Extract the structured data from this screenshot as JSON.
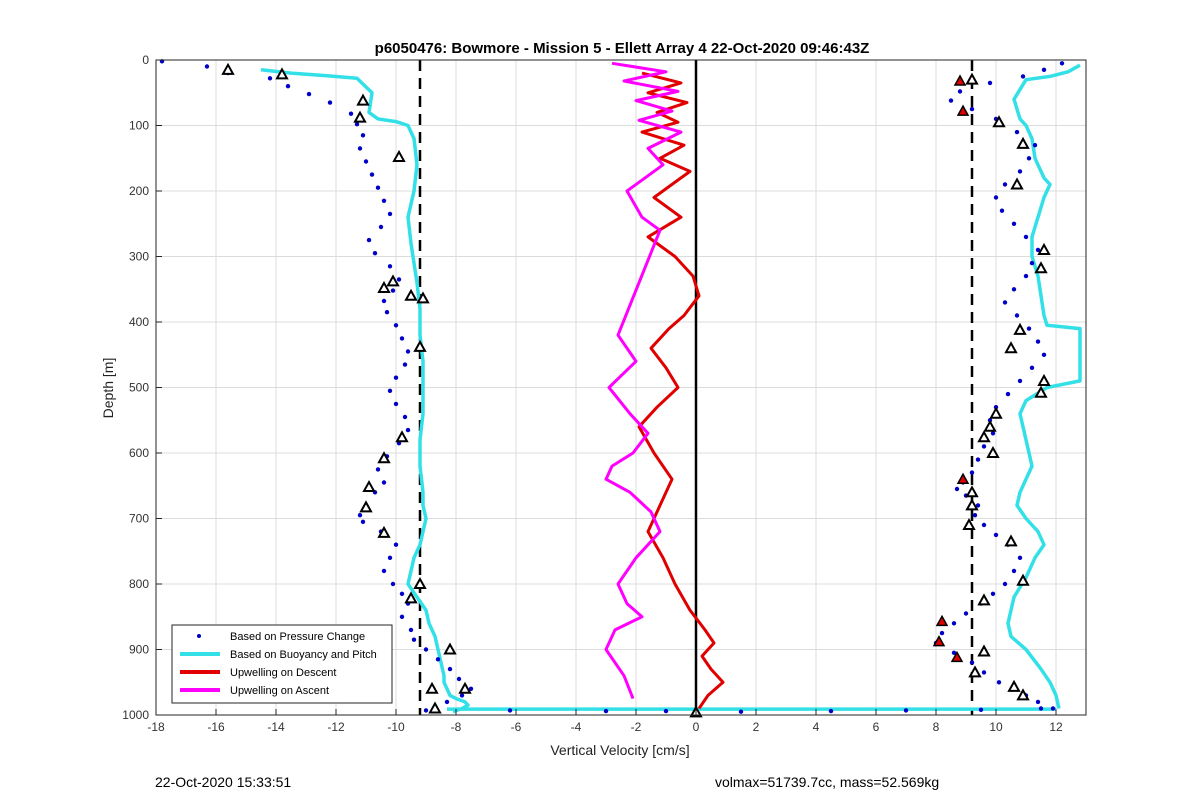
{
  "chart_data": {
    "type": "scatter",
    "title": "p6050476: Bowmore - Mission 5 - Ellett Array 4 22-Oct-2020 09:46:43Z",
    "xlabel": "Vertical Velocity [cm/s]",
    "ylabel": "Depth [m]",
    "xlim": [
      -18,
      13
    ],
    "ylim": [
      0,
      1000
    ],
    "y_reversed": true,
    "grid": true,
    "x_ticks": [
      "-18",
      "-16",
      "-14",
      "-12",
      "-10",
      "-8",
      "-6",
      "-4",
      "-2",
      "0",
      "2",
      "4",
      "6",
      "8",
      "10",
      "12"
    ],
    "y_ticks": [
      "0",
      "100",
      "200",
      "300",
      "400",
      "500",
      "600",
      "700",
      "800",
      "900",
      "1000"
    ],
    "legend_position": "bottom-left",
    "reference_lines": {
      "dashed_x": [
        -9.2,
        9.2
      ],
      "solid_x": [
        0
      ]
    },
    "series": [
      {
        "name": "Based on Pressure Change",
        "style": "dots",
        "color": "#0000c8",
        "profiles": [
          {
            "x": [
              -17.8,
              -16.3,
              -15.6,
              -14.2,
              -13.6,
              -12.9,
              -12.2,
              -11.5,
              -11.3,
              -11.1,
              -11.2,
              -11.0,
              -10.8,
              -10.6,
              -10.4,
              -10.2,
              -10.5,
              -10.9,
              -10.7,
              -10.2,
              -9.9,
              -10.1,
              -10.4,
              -10.3,
              -10.0,
              -9.8,
              -9.6,
              -9.7,
              -10.0,
              -10.2,
              -10.0,
              -9.7,
              -9.6,
              -9.9,
              -10.3,
              -10.6,
              -10.4,
              -10.7,
              -11.0,
              -11.2,
              -11.1,
              -10.5,
              -10.0,
              -10.2,
              -10.4,
              -10.1,
              -9.8,
              -9.6,
              -9.8,
              -9.5,
              -9.4,
              -9.0,
              -8.6,
              -8.2,
              -7.9,
              -7.5,
              -7.8,
              -8.3,
              -8.7
            ],
            "y": [
              2,
              10,
              20,
              28,
              40,
              52,
              65,
              82,
              98,
              115,
              135,
              155,
              175,
              195,
              215,
              235,
              255,
              275,
              295,
              315,
              335,
              352,
              368,
              385,
              405,
              425,
              445,
              465,
              485,
              505,
              525,
              545,
              565,
              585,
              605,
              625,
              645,
              660,
              680,
              695,
              705,
              720,
              740,
              760,
              780,
              800,
              815,
              830,
              850,
              870,
              885,
              900,
              915,
              930,
              945,
              960,
              970,
              980,
              990
            ]
          },
          {
            "x": [
              12.2,
              11.6,
              10.9,
              9.8,
              8.8,
              8.5,
              9.2,
              10.0,
              10.7,
              11.3,
              11.1,
              10.8,
              10.3,
              10.0,
              10.2,
              10.6,
              11.0,
              11.4,
              11.2,
              11.0,
              10.6,
              10.3,
              10.7,
              11.1,
              11.4,
              11.6,
              11.2,
              10.8,
              10.4,
              10.0,
              9.8,
              9.9,
              9.6,
              9.4,
              9.2,
              8.9,
              8.7,
              9.0,
              9.4,
              9.3,
              9.6,
              10.0,
              10.4,
              10.8,
              10.6,
              10.3,
              9.9,
              9.5,
              9.0,
              8.6,
              8.2,
              8.0,
              8.6,
              9.2,
              9.6,
              10.1,
              10.6,
              11.0,
              11.4,
              11.9
            ],
            "y": [
              5,
              15,
              25,
              35,
              48,
              62,
              75,
              90,
              110,
              130,
              150,
              170,
              190,
              210,
              230,
              250,
              270,
              290,
              310,
              330,
              350,
              370,
              390,
              410,
              430,
              450,
              470,
              490,
              510,
              530,
              550,
              570,
              590,
              610,
              630,
              645,
              655,
              665,
              680,
              695,
              710,
              725,
              740,
              760,
              780,
              800,
              815,
              830,
              845,
              860,
              875,
              890,
              905,
              920,
              935,
              950,
              960,
              970,
              980,
              990
            ]
          },
          {
            "x": [
              -9.0,
              -6.2,
              -3.0,
              -1.0,
              1.5,
              4.5,
              7.0,
              9.5,
              11.5
            ],
            "y": [
              993,
              993,
              994,
              994,
              995,
              994,
              993,
              992,
              990
            ]
          }
        ]
      },
      {
        "name": "Based on Buoyancy and Pitch",
        "style": "line",
        "color": "#33e0e8",
        "profiles": [
          {
            "x": [
              -14.5,
              -13.5,
              -12.3,
              -11.3,
              -10.8,
              -10.9,
              -10.6,
              -10.0,
              -9.6,
              -9.4,
              -9.3,
              -9.4,
              -9.6,
              -9.5,
              -9.4,
              -9.3,
              -9.2,
              -9.2,
              -9.1,
              -9.1,
              -9.1,
              -9.2,
              -9.2,
              -9.1,
              -9.1,
              -9.0,
              -9.1,
              -9.2,
              -9.4,
              -9.5,
              -9.6,
              -9.3,
              -9.0,
              -8.9,
              -8.7,
              -8.6,
              -8.5,
              -8.4,
              -8.4,
              -8.3,
              -8.2,
              -8.0,
              -7.7,
              -7.6,
              -7.8,
              -8.1
            ],
            "y": [
              15,
              20,
              24,
              28,
              50,
              80,
              90,
              94,
              100,
              120,
              160,
              200,
              240,
              280,
              310,
              340,
              380,
              420,
              460,
              500,
              540,
              580,
              620,
              660,
              680,
              700,
              720,
              740,
              760,
              780,
              800,
              820,
              840,
              860,
              880,
              900,
              920,
              940,
              950,
              960,
              970,
              975,
              980,
              985,
              990,
              995
            ]
          },
          {
            "x": [
              12.8,
              12.4,
              11.8,
              11.0,
              10.6,
              10.8,
              11.0,
              11.2,
              11.3,
              11.6,
              11.8,
              11.6,
              11.4,
              11.2,
              11.2,
              11.4,
              11.5,
              11.6,
              11.7,
              12.8,
              12.8,
              11.7,
              11.0,
              10.8,
              10.9,
              11.0,
              11.1,
              11.2,
              11.0,
              10.8,
              10.7,
              11.0,
              11.4,
              11.6,
              11.3,
              11.0,
              10.6,
              10.4,
              10.5,
              11.0,
              11.5,
              11.8,
              12.0,
              12.1
            ],
            "y": [
              8,
              18,
              25,
              30,
              60,
              90,
              100,
              120,
              150,
              180,
              190,
              210,
              240,
              270,
              300,
              330,
              360,
              390,
              405,
              410,
              490,
              500,
              520,
              540,
              560,
              580,
              600,
              620,
              640,
              660,
              680,
              700,
              720,
              740,
              760,
              790,
              820,
              860,
              880,
              900,
              930,
              950,
              970,
              990
            ]
          },
          {
            "x": [
              -8.3,
              -6.0,
              -4.0,
              -2.0,
              0.0,
              2.0,
              4.0,
              6.0,
              8.0,
              10.0,
              12.0
            ],
            "y": [
              991,
              991,
              991,
              991,
              991,
              991,
              991,
              991,
              991,
              991,
              991
            ]
          }
        ]
      },
      {
        "name": "Upwelling on Descent",
        "style": "line",
        "color": "#e00000",
        "profiles": [
          {
            "x": [
              -1.8,
              -0.5,
              -1.6,
              -0.3,
              -1.3,
              -0.6,
              -1.8,
              -0.4,
              -1.2,
              -0.2,
              -0.8,
              -1.4,
              -0.5,
              -1.6,
              -0.7,
              -0.1,
              0.1,
              -0.4,
              -0.9,
              -1.5,
              -1.0,
              -0.6,
              -1.3,
              -1.9,
              -1.4,
              -0.8,
              -1.2,
              -1.6,
              -1.1,
              -0.7,
              -0.2,
              0.3,
              0.6,
              0.2,
              0.5,
              0.9,
              0.4,
              0.1
            ],
            "y": [
              20,
              35,
              50,
              65,
              80,
              95,
              110,
              130,
              150,
              170,
              190,
              210,
              240,
              270,
              300,
              330,
              360,
              390,
              410,
              440,
              470,
              500,
              530,
              560,
              600,
              640,
              680,
              720,
              760,
              800,
              840,
              870,
              890,
              910,
              930,
              950,
              970,
              990
            ]
          }
        ]
      },
      {
        "name": "Upwelling on Ascent",
        "style": "line",
        "color": "#ff00ff",
        "profiles": [
          {
            "x": [
              -2.8,
              -1.0,
              -2.4,
              -0.6,
              -2.0,
              -0.8,
              -1.9,
              -0.5,
              -1.6,
              -1.1,
              -2.3,
              -1.8,
              -1.2,
              -2.6,
              -2.0,
              -2.9,
              -2.2,
              -1.6,
              -2.1,
              -2.8,
              -3.0,
              -2.2,
              -1.5,
              -1.2,
              -2.0,
              -2.6,
              -2.3,
              -1.8,
              -2.7,
              -3.0,
              -2.4,
              -2.1
            ],
            "y": [
              5,
              18,
              32,
              48,
              62,
              78,
              92,
              110,
              135,
              160,
              200,
              240,
              260,
              420,
              460,
              500,
              540,
              570,
              600,
              620,
              640,
              660,
              690,
              720,
              760,
              800,
              830,
              850,
              870,
              900,
              940,
              975
            ]
          }
        ]
      }
    ],
    "markers": {
      "descent_red": [
        [
          8.8,
          32
        ],
        [
          8.9,
          78
        ],
        [
          8.9,
          640
        ],
        [
          8.2,
          857
        ],
        [
          8.1,
          888
        ],
        [
          8.7,
          912
        ]
      ],
      "outlined": [
        [
          -15.6,
          15
        ],
        [
          -13.8,
          22
        ],
        [
          -11.1,
          62
        ],
        [
          -11.2,
          88
        ],
        [
          -9.9,
          148
        ],
        [
          -10.1,
          338
        ],
        [
          -10.4,
          348
        ],
        [
          -9.5,
          360
        ],
        [
          -9.1,
          364
        ],
        [
          -9.2,
          438
        ],
        [
          -9.8,
          576
        ],
        [
          -10.4,
          608
        ],
        [
          -10.9,
          652
        ],
        [
          -11.0,
          683
        ],
        [
          -10.4,
          722
        ],
        [
          -9.2,
          800
        ],
        [
          -9.5,
          822
        ],
        [
          -8.2,
          900
        ],
        [
          -8.8,
          960
        ],
        [
          -7.7,
          960
        ],
        [
          -8.7,
          990
        ],
        [
          0.0,
          996
        ],
        [
          9.2,
          30
        ],
        [
          10.1,
          95
        ],
        [
          10.9,
          128
        ],
        [
          10.7,
          190
        ],
        [
          11.6,
          290
        ],
        [
          11.5,
          318
        ],
        [
          10.8,
          412
        ],
        [
          10.5,
          440
        ],
        [
          11.6,
          490
        ],
        [
          11.5,
          508
        ],
        [
          10.0,
          540
        ],
        [
          9.8,
          560
        ],
        [
          9.6,
          576
        ],
        [
          9.9,
          600
        ],
        [
          9.2,
          660
        ],
        [
          9.2,
          680
        ],
        [
          9.1,
          710
        ],
        [
          10.5,
          735
        ],
        [
          10.9,
          795
        ],
        [
          9.6,
          825
        ],
        [
          9.6,
          903
        ],
        [
          9.3,
          935
        ],
        [
          10.6,
          957
        ],
        [
          10.9,
          970
        ]
      ]
    }
  },
  "footer": {
    "timestamp": "22-Oct-2020 15:33:51",
    "vol_mass": "volmax=51739.7cc, mass=52.569kg"
  },
  "colors": {
    "pressure": "#0000c8",
    "buoyancy": "#33e0e8",
    "descent": "#e00000",
    "ascent": "#ff00ff",
    "grid": "#dcdcdc"
  }
}
